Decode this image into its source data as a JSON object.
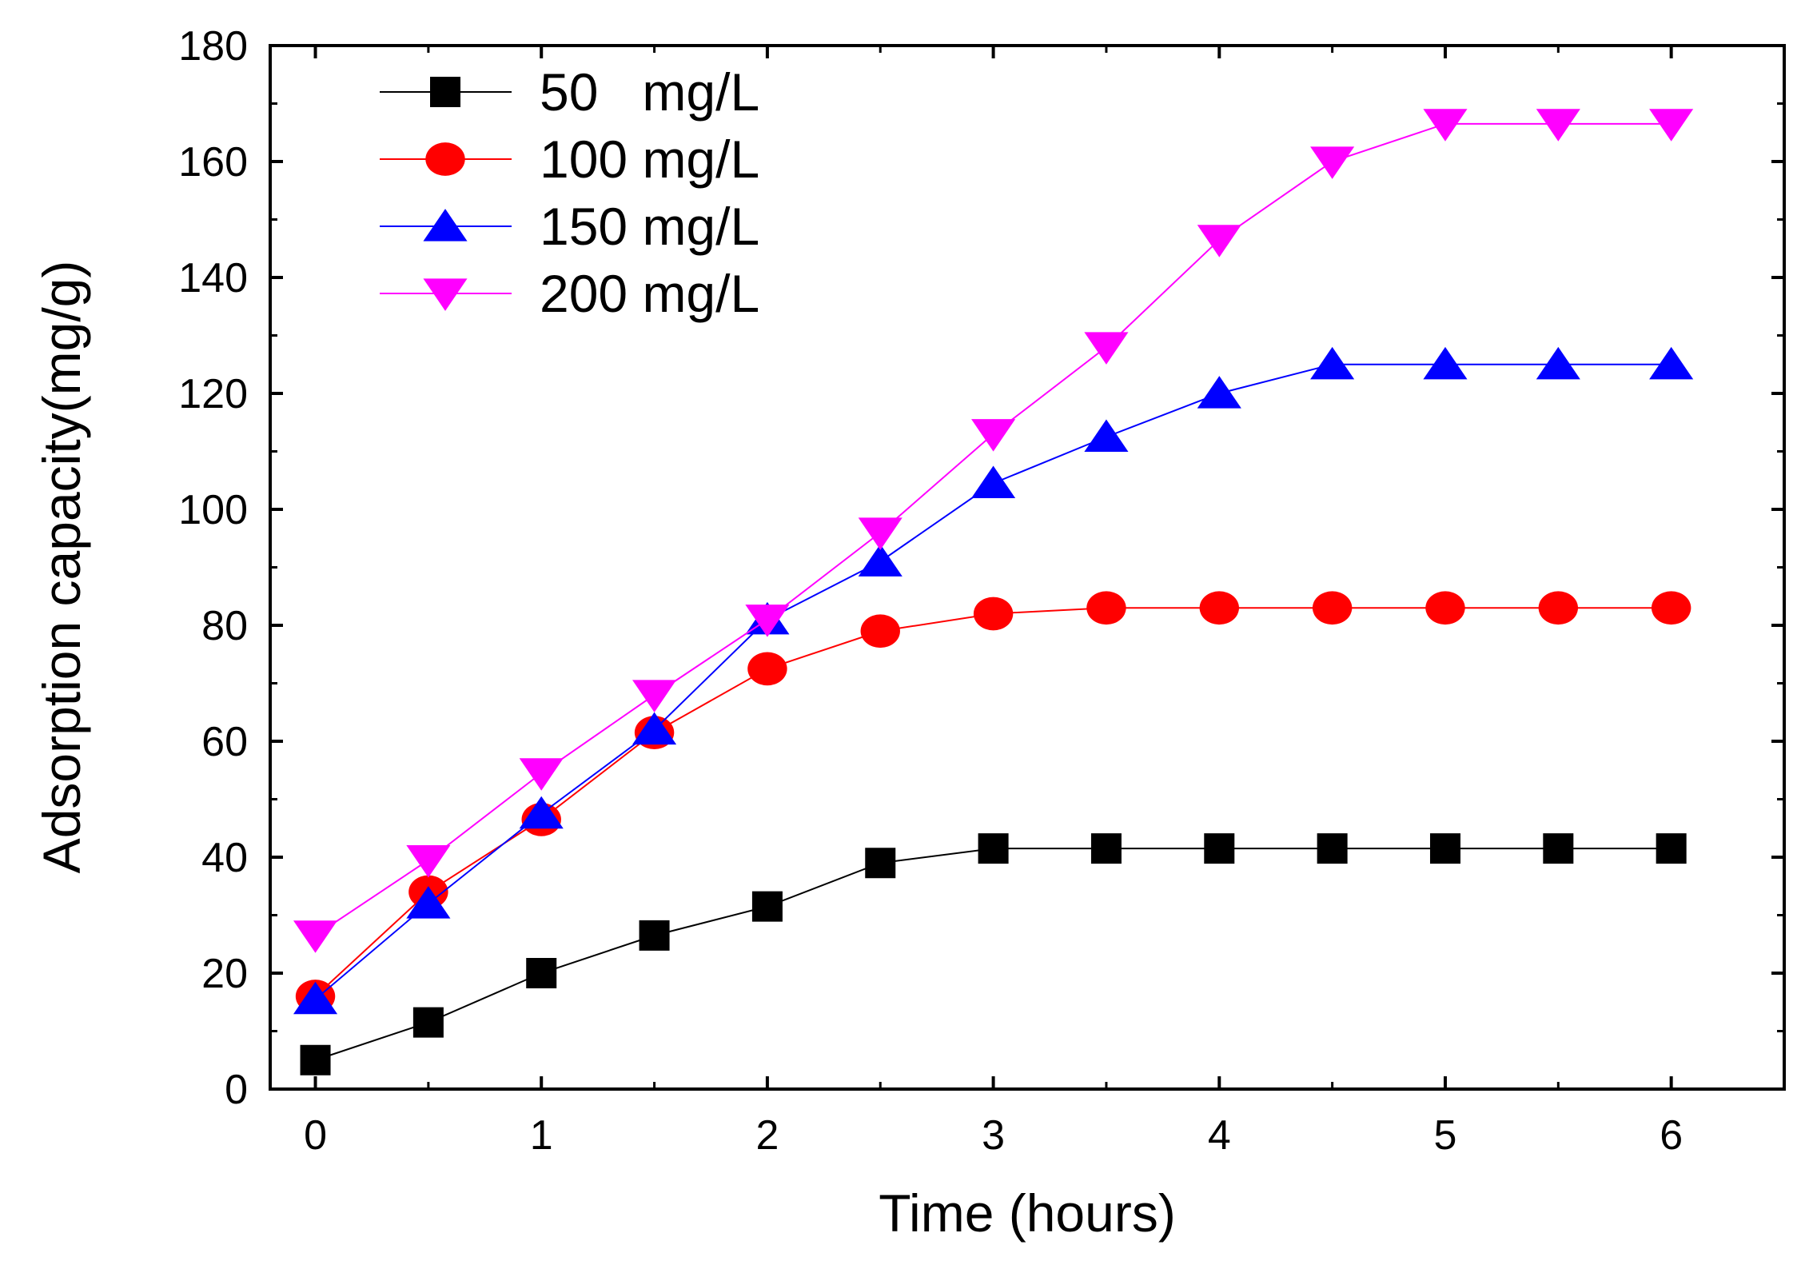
{
  "chart_data": {
    "type": "line",
    "title": "",
    "xlabel": "Time (hours)",
    "ylabel": "Adsorption capacity(mg/g)",
    "xlim": [
      -0.2,
      6.5
    ],
    "ylim": [
      0,
      180
    ],
    "xticks": [
      0,
      1,
      2,
      3,
      4,
      5,
      6
    ],
    "yticks": [
      0,
      20,
      40,
      60,
      80,
      100,
      120,
      140,
      160,
      180
    ],
    "grid": false,
    "legend_position": "top-left",
    "x": [
      0,
      0.5,
      1,
      1.5,
      2,
      2.5,
      3,
      3.5,
      4,
      4.5,
      5,
      5.5,
      6
    ],
    "series": [
      {
        "name": "50   mg/L",
        "color": "#000000",
        "marker": "square",
        "values": [
          5,
          11.5,
          20,
          26.5,
          31.5,
          39,
          41.5,
          41.5,
          41.5,
          41.5,
          41.5,
          41.5,
          41.5
        ]
      },
      {
        "name": "100 mg/L",
        "color": "#ff0000",
        "marker": "circle",
        "values": [
          16,
          34,
          46.5,
          61.5,
          72.5,
          79,
          82,
          83,
          83,
          83,
          83,
          83,
          83
        ]
      },
      {
        "name": "150 mg/L",
        "color": "#0000ff",
        "marker": "triangle-up",
        "values": [
          15.5,
          32,
          47.5,
          62,
          81,
          91,
          104.5,
          112.5,
          120,
          125,
          125,
          125,
          125
        ]
      },
      {
        "name": "200 mg/L",
        "color": "#ff00ff",
        "marker": "triangle-down",
        "values": [
          26.5,
          39.5,
          54.5,
          68,
          81,
          96,
          113,
          128,
          146.5,
          160,
          166.5,
          166.5,
          166.5
        ]
      }
    ]
  }
}
